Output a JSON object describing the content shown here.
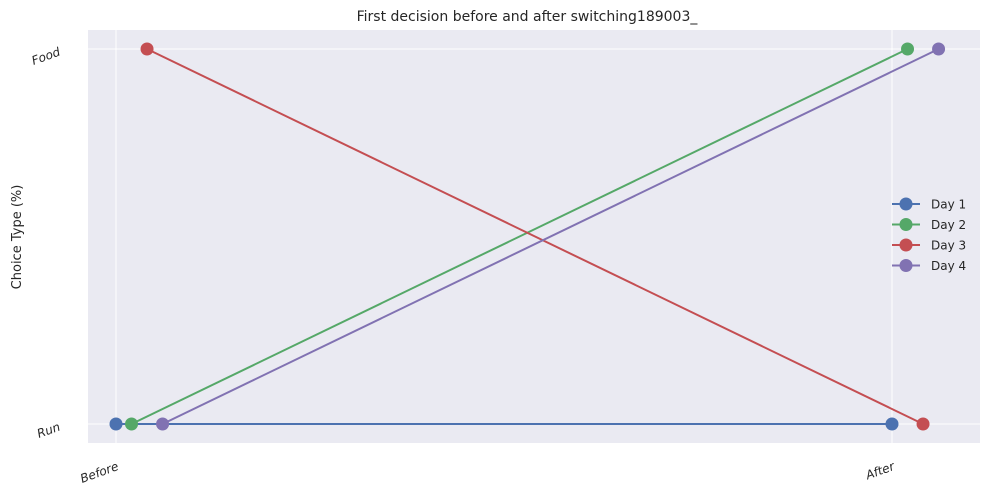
{
  "chart_data": {
    "type": "line",
    "title": "First decision before and after switching189003_",
    "xlabel": "",
    "ylabel": "Choice Type (%)",
    "categories": [
      "Before",
      "After"
    ],
    "y_categories": [
      "Run",
      "Food"
    ],
    "grid": true,
    "legend": "center-right",
    "series": [
      {
        "name": "Day 1",
        "color": "#4c72b0",
        "x": [
          0,
          1
        ],
        "values": [
          "Run",
          "Run"
        ]
      },
      {
        "name": "Day 2",
        "color": "#55a868",
        "x": [
          0.02,
          1.02
        ],
        "values": [
          "Run",
          "Food"
        ]
      },
      {
        "name": "Day 3",
        "color": "#c44e52",
        "x": [
          0.04,
          1.04
        ],
        "values": [
          "Food",
          "Run"
        ]
      },
      {
        "name": "Day 4",
        "color": "#8172b2",
        "x": [
          0.06,
          1.06
        ],
        "values": [
          "Run",
          "Food"
        ]
      }
    ],
    "background_color": "#eaeaf2",
    "grid_color": "#ffffff"
  }
}
